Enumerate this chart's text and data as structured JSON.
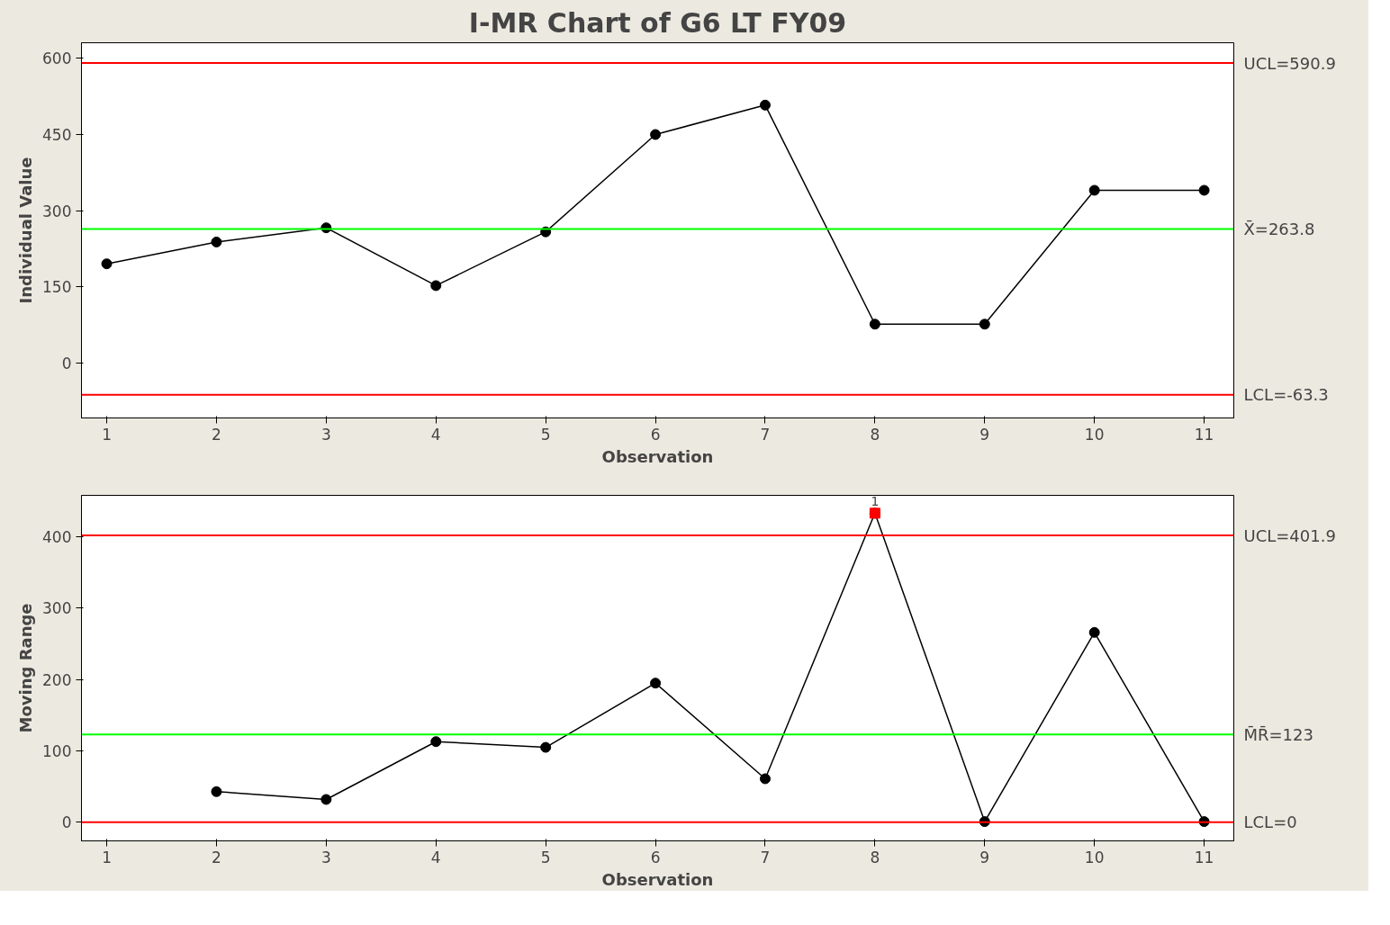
{
  "chart_data": [
    {
      "type": "line",
      "title": "I-MR Chart of G6 LT FY09",
      "xlabel": "Observation",
      "ylabel": "Individual Value",
      "x": [
        1,
        2,
        3,
        4,
        5,
        6,
        7,
        8,
        9,
        10,
        11
      ],
      "series": [
        {
          "color": "#000000",
          "values": [
            195,
            238,
            266,
            152,
            258,
            450,
            508,
            76,
            76,
            340,
            340
          ]
        }
      ],
      "xlim": [
        0.77,
        11.27
      ],
      "xticks": [
        1,
        2,
        3,
        4,
        5,
        6,
        7,
        8,
        9,
        10,
        11
      ],
      "ylim": [
        -109,
        631
      ],
      "yticks": [
        0,
        150,
        300,
        450,
        600
      ],
      "ref_lines": [
        {
          "axis": "y",
          "value": 590.9,
          "label": "UCL=590.9",
          "color": "#ff0000"
        },
        {
          "axis": "y",
          "value": 263.8,
          "label": "X̄=263.8",
          "color": "#00ff00"
        },
        {
          "axis": "y",
          "value": -63.3,
          "label": "LCL=-63.3",
          "color": "#ff0000"
        }
      ],
      "marker": "circle",
      "grid": false
    },
    {
      "type": "line",
      "xlabel": "Observation",
      "ylabel": "Moving Range",
      "series": [
        {
          "color": "#000000",
          "x": [
            2,
            3,
            4,
            5,
            6,
            7,
            8,
            9,
            10,
            11
          ],
          "values": [
            43,
            32,
            113,
            105,
            195,
            61,
            433,
            1,
            266,
            1
          ]
        },
        {
          "type": "scatter",
          "color": "#ff0000",
          "marker": "square",
          "x": [
            8
          ],
          "values": [
            433
          ]
        }
      ],
      "xlim": [
        0.77,
        11.27
      ],
      "xticks": [
        1,
        2,
        3,
        4,
        5,
        6,
        7,
        8,
        9,
        10,
        11
      ],
      "ylim": [
        -26,
        458
      ],
      "yticks": [
        0,
        100,
        200,
        300,
        400
      ],
      "ref_lines": [
        {
          "axis": "y",
          "value": 401.9,
          "label": "UCL=401.9",
          "color": "#ff0000"
        },
        {
          "axis": "y",
          "value": 123,
          "label": "M̄R̄=123",
          "color": "#00ff00"
        },
        {
          "axis": "y",
          "value": 0,
          "label": "LCL=0",
          "color": "#ff0000"
        }
      ],
      "annotations": [
        {
          "text": "1",
          "x": 8,
          "y": 433
        }
      ],
      "marker": "circle",
      "grid": false
    }
  ]
}
